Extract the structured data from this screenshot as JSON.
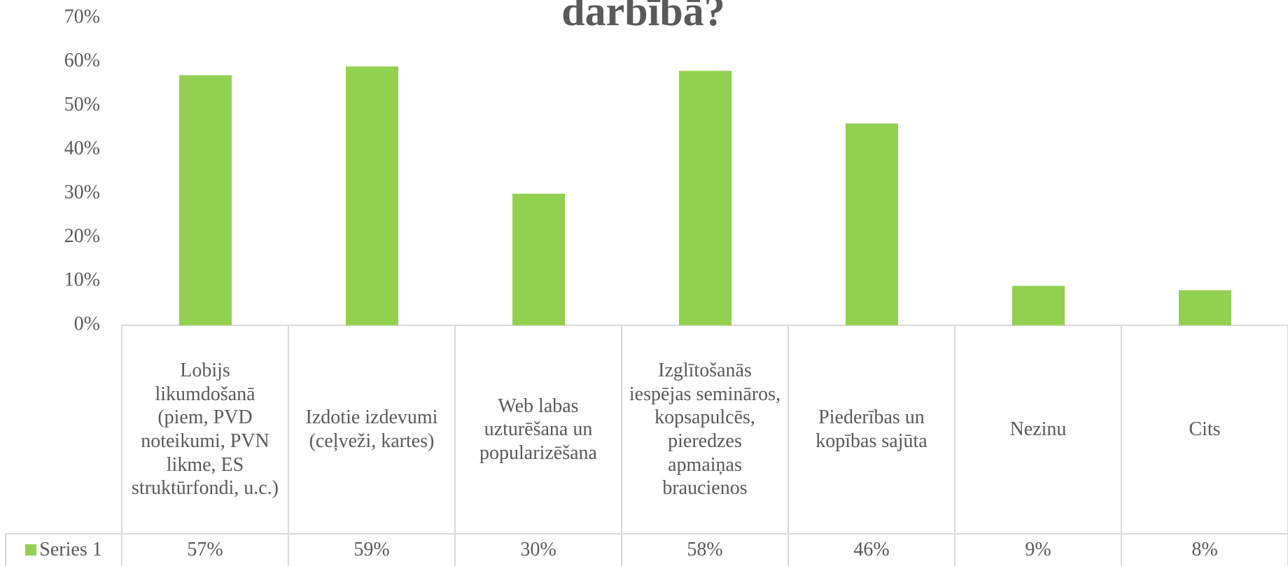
{
  "chart_data": {
    "type": "bar",
    "title": "darbībā?",
    "categories": [
      "Lobijs likumdošanā (piem, PVD noteikumi, PVN likme, ES struktūrfondi, u.c.)",
      "Izdotie izdevumi (ceļveži, kartes)",
      "Web labas uzturēšana un popularizēšana",
      "Izglītošanās iespējas semināros, kopsapulcēs, pieredzes apmaiņas braucienos",
      "Piederības un kopības sajūta",
      "Nezinu",
      "Cits"
    ],
    "series": [
      {
        "name": "Series 1",
        "color": "#92d050",
        "values": [
          57,
          59,
          30,
          58,
          46,
          9,
          8
        ],
        "value_labels": [
          "57%",
          "59%",
          "30%",
          "58%",
          "46%",
          "9%",
          "8%"
        ]
      }
    ],
    "ylim": [
      0,
      70
    ],
    "yticks": [
      {
        "value": 0,
        "label": "0%"
      },
      {
        "value": 10,
        "label": "10%"
      },
      {
        "value": 20,
        "label": "20%"
      },
      {
        "value": 30,
        "label": "30%"
      },
      {
        "value": 40,
        "label": "40%"
      },
      {
        "value": 50,
        "label": "50%"
      },
      {
        "value": 60,
        "label": "60%"
      },
      {
        "value": 70,
        "label": "70%"
      }
    ]
  }
}
